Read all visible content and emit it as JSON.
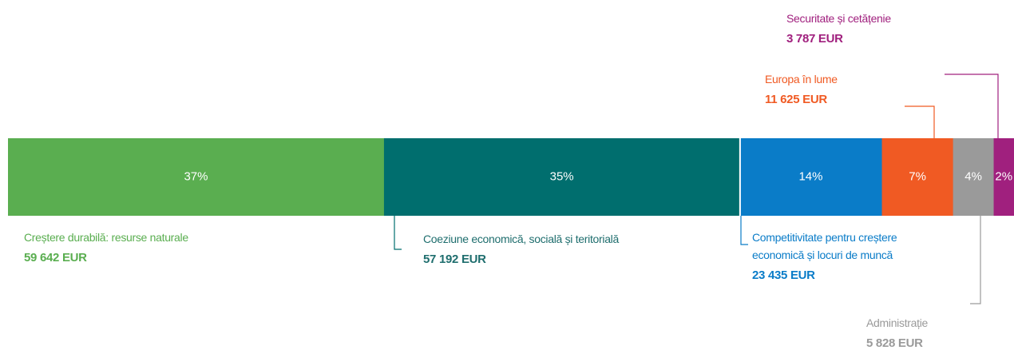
{
  "chart_data": {
    "type": "stacked-bar",
    "categories": [
      "Creștere durabilă: resurse naturale",
      "Coeziune economică, socială și teritorială",
      "Competitivitate pentru creștere economică și locuri de muncă",
      "Europa în lume",
      "Administrație",
      "Securitate și cetățenie"
    ],
    "values": [
      37,
      35,
      14,
      7,
      4,
      2
    ],
    "value_labels": [
      "37%",
      "35%",
      "14%",
      "7%",
      "4%",
      "2%"
    ],
    "amounts": [
      59642,
      57192,
      23435,
      11625,
      5828,
      3787
    ],
    "amount_labels": [
      "59 642 EUR",
      "57 192 EUR",
      "23 435 EUR",
      "11 625  EUR",
      "5 828 EUR",
      "3 787 EUR"
    ],
    "colors": [
      "#5aae50",
      "#006e6e",
      "#0a7cc8",
      "#f05a23",
      "#9a9a9a",
      "#a0207e"
    ]
  }
}
